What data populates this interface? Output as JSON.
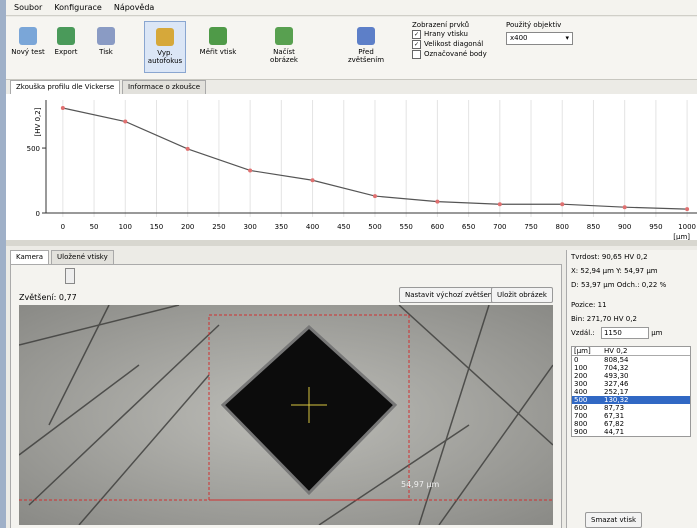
{
  "menu": [
    "Soubor",
    "Konfigurace",
    "Nápověda"
  ],
  "toolbar": {
    "buttons": [
      "Nový test",
      "Export",
      "Tisk",
      "Vyp. autofokus",
      "Měřit vtisk",
      "Načíst obrázek",
      "Před zvětšením"
    ],
    "display_group": {
      "title": "Zobrazení prvků",
      "options": [
        {
          "label": "Hrany vtisku",
          "checked": true
        },
        {
          "label": "Velikost diagonál",
          "checked": true
        },
        {
          "label": "Označované body",
          "checked": false
        }
      ]
    },
    "objective": {
      "label": "Použitý objektiv",
      "value": "x400"
    }
  },
  "tabs": [
    "Zkouška profilu dle Vickerse",
    "Informace o zkoušce"
  ],
  "profile_chart": {
    "y_label": "[HV 0,2]",
    "x_label": "[µm]",
    "x": [
      0,
      100,
      200,
      300,
      400,
      500,
      600,
      700,
      800,
      900,
      1000
    ],
    "values": [
      808.54,
      704.32,
      493.3,
      327.46,
      252.17,
      130.32,
      87.73,
      67.31,
      67.82,
      44.71,
      30
    ],
    "xlim": [
      -27,
      1016
    ],
    "ylim": [
      0,
      870
    ],
    "xticks": [
      0,
      50,
      100,
      150,
      200,
      250,
      300,
      350,
      400,
      450,
      500,
      550,
      600,
      650,
      700,
      750,
      800,
      850,
      900,
      950,
      1000
    ],
    "yticks": [
      0,
      500
    ]
  },
  "camera": {
    "tabs": [
      "Kamera",
      "Uložené vtisky"
    ],
    "zoom_label": "Zvětšení: 0,77",
    "buttons": [
      "Nastavit výchozí zvětšení",
      "Uložit obrázek"
    ],
    "measure_label": "54,97 µm"
  },
  "results": {
    "hardness": "Tvrdost: 90,65 HV 0,2",
    "xy": "X: 52,94 µm   Y: 54,97 µm",
    "diag": "D: 53,97 µm   Odch.: 0,22 %",
    "position": "Pozice: 11",
    "bin": "Bin: 271,70 HV 0,2",
    "distance_label": "Vzdál.:",
    "distance_value": "1150",
    "distance_unit": "µm"
  },
  "table": {
    "headers": [
      "[µm]",
      "HV 0,2"
    ],
    "rows": [
      [
        "0",
        "808,54"
      ],
      [
        "100",
        "704,32"
      ],
      [
        "200",
        "493,30"
      ],
      [
        "300",
        "327,46"
      ],
      [
        "400",
        "252,17"
      ],
      [
        "500",
        "130,32"
      ],
      [
        "600",
        "87,73"
      ],
      [
        "700",
        "67,31"
      ],
      [
        "800",
        "67,82"
      ],
      [
        "900",
        "44,71"
      ]
    ],
    "selected": 5
  },
  "delete_button": "Smazat vtisk"
}
